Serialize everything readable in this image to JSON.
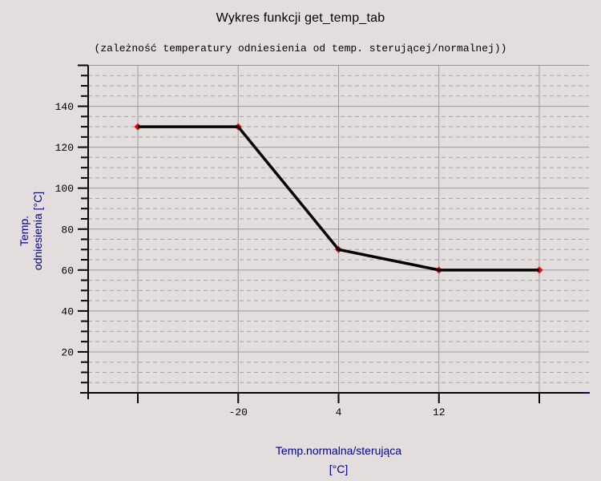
{
  "chart_data": {
    "type": "line",
    "title": "Wykres funkcji get_temp_tab",
    "subtitle": "(zależność temperatury odniesienia od temp. sterującej/normalnej))",
    "xlabel_lines": [
      "Temp.normalna/sterująca",
      "[°C]"
    ],
    "ylabel_lines": [
      "Temp.",
      "odniesienia [°C]"
    ],
    "x_tick_labels": [
      "",
      "-20",
      "4",
      "12",
      ""
    ],
    "series": [
      {
        "name": "get_temp_tab",
        "values": [
          130,
          130,
          70,
          60,
          60
        ]
      }
    ],
    "x_spacing": "categorical-even",
    "y_tick_values": [
      20,
      40,
      60,
      80,
      100,
      120,
      140,
      160
    ],
    "y_tick_labels": [
      "20",
      "40",
      "60",
      "80",
      "100",
      "120",
      "140",
      ""
    ],
    "y_minor_step": 5,
    "ylim": [
      0,
      160
    ],
    "grid": {
      "major": "solid",
      "minor": "dashed",
      "vertical_at_x_ticks": true
    },
    "marker": {
      "shape": "diamond",
      "size": 9
    },
    "legend": "none",
    "colors": {
      "background": "#e4dddd",
      "text": "#000000",
      "label-blue": "#000099",
      "axis": "#000000",
      "axis-tip": "#000080",
      "grid-major": "#9a9a9a",
      "grid-minor": "#a3a3a3",
      "line": "#000000",
      "marker": "#ff0000"
    }
  }
}
